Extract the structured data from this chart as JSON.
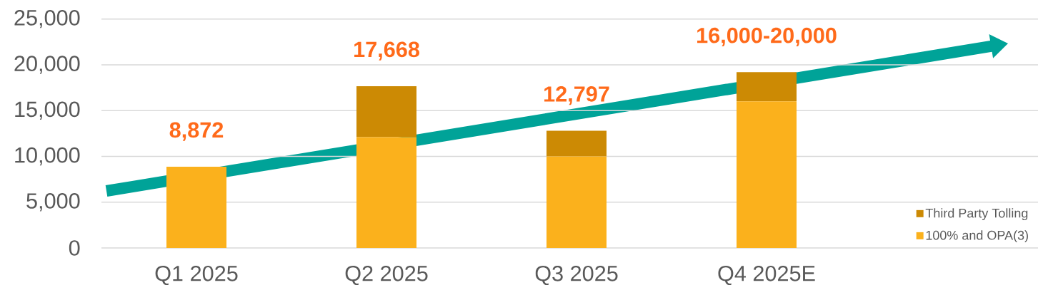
{
  "chart_data": {
    "type": "bar",
    "stacked": true,
    "categories": [
      "Q1 2025",
      "Q2 2025",
      "Q3 2025",
      "Q4 2025E"
    ],
    "series": [
      {
        "name": "100% and OPA(3)",
        "color": "#fbb11c",
        "values": [
          8872,
          12100,
          10000,
          16000
        ]
      },
      {
        "name": "Third Party Tolling",
        "color": "#cc8a04",
        "values": [
          null,
          5568,
          2797,
          3200
        ]
      }
    ],
    "totals": [
      "8,872",
      "17,668",
      "12,797",
      "16,000-20,000"
    ],
    "ylim": [
      0,
      25000
    ],
    "yticks": [
      0,
      {
        "value": 5000,
        "label": "5,000"
      },
      {
        "value": 10000,
        "label": "10,000"
      },
      {
        "value": 15000,
        "label": "15,000"
      },
      {
        "value": 20000,
        "label": "20,000"
      },
      {
        "value": 25000,
        "label": "25,000"
      }
    ],
    "grid": "y",
    "legend": "bottom right"
  }
}
